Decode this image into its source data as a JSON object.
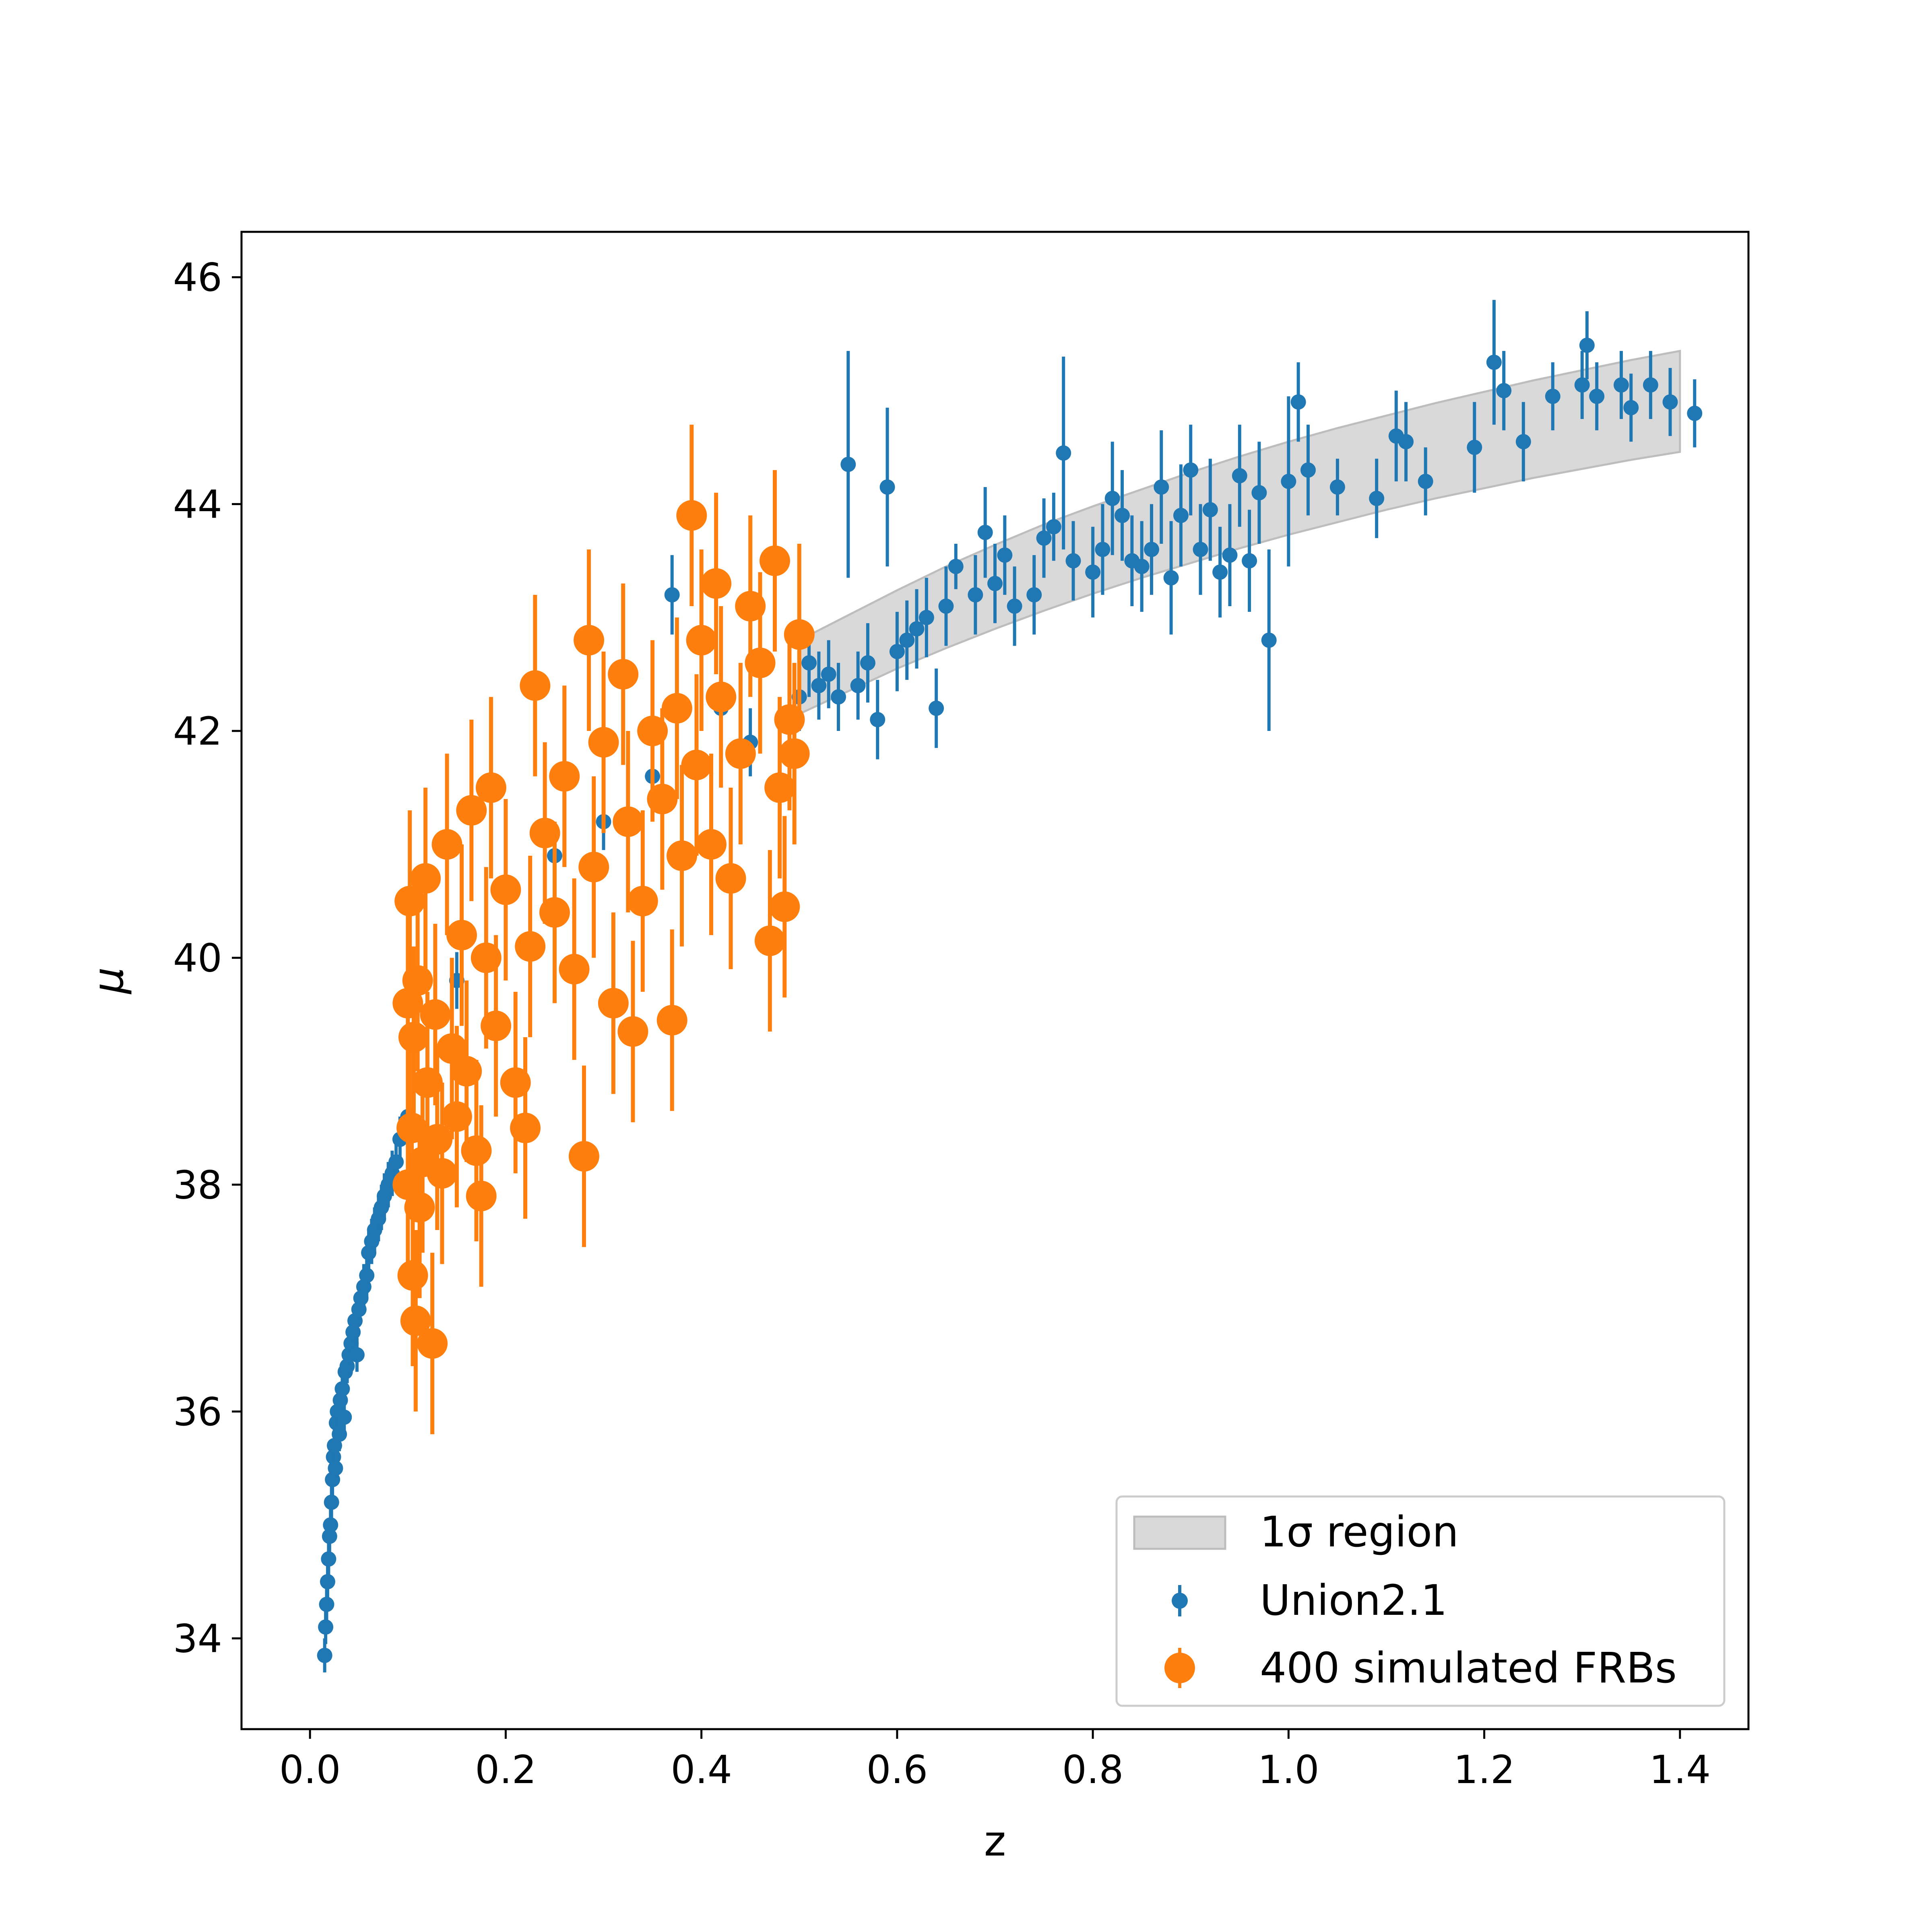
{
  "chart_data": {
    "type": "scatter",
    "title": "",
    "xlabel": "z",
    "ylabel": "μ",
    "xlim": [
      -0.07,
      1.47
    ],
    "ylim": [
      33.2,
      46.4
    ],
    "x_ticks": [
      0.0,
      0.2,
      0.4,
      0.6,
      0.8,
      1.0,
      1.2,
      1.4
    ],
    "x_tick_labels": [
      "0.0",
      "0.2",
      "0.4",
      "0.6",
      "0.8",
      "1.0",
      "1.2",
      "1.4"
    ],
    "y_ticks": [
      34,
      36,
      38,
      40,
      42,
      44,
      46
    ],
    "y_tick_labels": [
      "34",
      "36",
      "38",
      "40",
      "42",
      "44",
      "46"
    ],
    "grid": false,
    "legend_position": "lower-right",
    "colors": {
      "band": "#d9d9d9",
      "band_edge": "#bdbdbd",
      "union": "#1f77b4",
      "frb": "#ff7f0e"
    },
    "series": [
      {
        "name": "1σ region",
        "kind": "band",
        "x": [
          0.5,
          0.55,
          0.6,
          0.65,
          0.7,
          0.75,
          0.8,
          0.85,
          0.9,
          0.95,
          1.0,
          1.05,
          1.1,
          1.15,
          1.2,
          1.25,
          1.3,
          1.35,
          1.4
        ],
        "lower": [
          42.15,
          42.35,
          42.55,
          42.73,
          42.9,
          43.06,
          43.21,
          43.35,
          43.48,
          43.61,
          43.73,
          43.84,
          43.95,
          44.05,
          44.14,
          44.23,
          44.31,
          44.39,
          44.46
        ],
        "upper": [
          42.8,
          43.02,
          43.24,
          43.45,
          43.64,
          43.82,
          43.98,
          44.13,
          44.28,
          44.42,
          44.55,
          44.67,
          44.78,
          44.89,
          44.99,
          45.09,
          45.18,
          45.27,
          45.35
        ]
      },
      {
        "name": "Union2.1",
        "kind": "errorbar",
        "x": [
          0.015,
          0.016,
          0.017,
          0.018,
          0.019,
          0.02,
          0.021,
          0.022,
          0.023,
          0.024,
          0.025,
          0.026,
          0.027,
          0.028,
          0.03,
          0.031,
          0.033,
          0.035,
          0.036,
          0.038,
          0.04,
          0.042,
          0.044,
          0.046,
          0.048,
          0.05,
          0.052,
          0.055,
          0.058,
          0.06,
          0.063,
          0.066,
          0.07,
          0.073,
          0.076,
          0.08,
          0.084,
          0.088,
          0.092,
          0.1,
          0.15,
          0.2,
          0.25,
          0.3,
          0.35,
          0.37,
          0.42,
          0.45,
          0.5,
          0.51,
          0.52,
          0.53,
          0.54,
          0.55,
          0.56,
          0.57,
          0.58,
          0.59,
          0.6,
          0.61,
          0.62,
          0.63,
          0.64,
          0.65,
          0.66,
          0.68,
          0.69,
          0.7,
          0.71,
          0.72,
          0.74,
          0.75,
          0.76,
          0.77,
          0.78,
          0.8,
          0.81,
          0.82,
          0.83,
          0.84,
          0.85,
          0.86,
          0.87,
          0.88,
          0.89,
          0.9,
          0.91,
          0.92,
          0.93,
          0.94,
          0.95,
          0.96,
          0.97,
          0.98,
          1.0,
          1.01,
          1.02,
          1.05,
          1.09,
          1.11,
          1.12,
          1.14,
          1.19,
          1.21,
          1.22,
          1.24,
          1.27,
          1.3,
          1.305,
          1.315,
          1.34,
          1.35,
          1.37,
          1.39,
          1.415
        ],
        "y": [
          33.85,
          34.1,
          34.3,
          34.5,
          34.7,
          34.9,
          35.0,
          35.2,
          35.4,
          35.6,
          35.7,
          35.5,
          35.9,
          36.0,
          35.8,
          36.1,
          36.2,
          35.95,
          36.35,
          36.4,
          36.5,
          36.6,
          36.7,
          36.8,
          36.5,
          36.9,
          37.0,
          37.1,
          37.2,
          37.4,
          37.5,
          37.6,
          37.7,
          37.8,
          37.9,
          38.0,
          38.1,
          38.2,
          38.4,
          38.6,
          39.8,
          40.6,
          40.9,
          41.2,
          41.6,
          43.2,
          42.2,
          41.9,
          42.3,
          42.6,
          42.4,
          42.5,
          42.3,
          44.35,
          42.4,
          42.6,
          42.1,
          44.15,
          42.7,
          42.8,
          42.9,
          43.0,
          42.2,
          43.1,
          43.45,
          43.2,
          43.75,
          43.3,
          43.55,
          43.1,
          43.2,
          43.7,
          43.8,
          44.45,
          43.5,
          43.4,
          43.6,
          44.05,
          43.9,
          43.5,
          43.45,
          43.6,
          44.15,
          43.35,
          43.9,
          44.3,
          43.6,
          43.95,
          43.4,
          43.55,
          44.25,
          43.5,
          44.1,
          42.8,
          44.2,
          44.9,
          44.3,
          44.15,
          44.05,
          44.6,
          44.55,
          44.2,
          44.5,
          45.25,
          45.0,
          44.55,
          44.95,
          45.05,
          45.4,
          44.95,
          45.05,
          44.85,
          45.05,
          44.9,
          44.8
        ],
        "err": [
          0.15,
          0.15,
          0.15,
          0.15,
          0.15,
          0.15,
          0.15,
          0.15,
          0.15,
          0.15,
          0.15,
          0.15,
          0.15,
          0.15,
          0.15,
          0.15,
          0.15,
          0.15,
          0.15,
          0.15,
          0.15,
          0.15,
          0.15,
          0.15,
          0.15,
          0.15,
          0.15,
          0.2,
          0.2,
          0.2,
          0.2,
          0.2,
          0.2,
          0.2,
          0.2,
          0.2,
          0.2,
          0.2,
          0.2,
          0.25,
          0.25,
          0.25,
          0.25,
          0.25,
          0.25,
          0.35,
          0.3,
          0.3,
          0.3,
          0.3,
          0.3,
          0.3,
          0.3,
          1.0,
          0.3,
          0.35,
          0.35,
          0.7,
          0.35,
          0.35,
          0.35,
          0.35,
          0.35,
          0.35,
          0.2,
          0.35,
          0.4,
          0.35,
          0.35,
          0.35,
          0.35,
          0.35,
          0.3,
          0.85,
          0.35,
          0.4,
          0.4,
          0.5,
          0.4,
          0.4,
          0.4,
          0.4,
          0.5,
          0.5,
          0.45,
          0.4,
          0.4,
          0.45,
          0.4,
          0.45,
          0.45,
          0.45,
          0.45,
          0.8,
          0.75,
          0.35,
          0.4,
          0.25,
          0.35,
          0.4,
          0.35,
          0.3,
          0.4,
          0.55,
          0.35,
          0.35,
          0.3,
          0.3,
          0.3,
          0.3,
          0.3,
          0.3,
          0.3,
          0.3,
          0.3
        ]
      },
      {
        "name": "400 simulated FRBs",
        "kind": "errorbar",
        "x": [
          0.1,
          0.1,
          0.102,
          0.104,
          0.105,
          0.106,
          0.108,
          0.11,
          0.112,
          0.115,
          0.118,
          0.12,
          0.125,
          0.128,
          0.13,
          0.135,
          0.14,
          0.145,
          0.15,
          0.155,
          0.16,
          0.165,
          0.17,
          0.175,
          0.18,
          0.185,
          0.19,
          0.2,
          0.21,
          0.22,
          0.225,
          0.23,
          0.24,
          0.25,
          0.26,
          0.27,
          0.28,
          0.285,
          0.29,
          0.3,
          0.31,
          0.32,
          0.325,
          0.33,
          0.34,
          0.35,
          0.36,
          0.37,
          0.375,
          0.38,
          0.39,
          0.395,
          0.4,
          0.41,
          0.415,
          0.42,
          0.43,
          0.44,
          0.45,
          0.46,
          0.47,
          0.475,
          0.48,
          0.485,
          0.49,
          0.495,
          0.5
        ],
        "y": [
          39.6,
          38.0,
          40.5,
          38.5,
          37.2,
          39.3,
          36.8,
          39.8,
          37.8,
          38.2,
          40.7,
          38.9,
          36.6,
          39.5,
          38.4,
          38.1,
          41.0,
          39.2,
          38.6,
          40.2,
          39.0,
          41.3,
          38.3,
          37.9,
          40.0,
          41.5,
          39.4,
          40.6,
          38.9,
          38.5,
          40.1,
          42.4,
          41.1,
          40.4,
          41.6,
          39.9,
          38.25,
          42.8,
          40.8,
          41.9,
          39.6,
          42.5,
          41.2,
          39.35,
          40.5,
          42.0,
          41.4,
          39.45,
          42.2,
          40.9,
          43.9,
          41.7,
          42.8,
          41.0,
          43.3,
          42.3,
          40.7,
          41.8,
          43.1,
          42.6,
          40.15,
          43.5,
          41.5,
          40.45,
          42.1,
          41.8,
          42.85
        ],
        "err": [
          0.8,
          0.8,
          0.8,
          0.8,
          0.8,
          0.8,
          0.8,
          0.8,
          0.8,
          0.8,
          0.8,
          0.8,
          0.8,
          0.8,
          0.8,
          0.8,
          0.8,
          0.8,
          0.8,
          0.8,
          0.8,
          0.8,
          0.8,
          0.8,
          0.8,
          0.8,
          0.8,
          0.8,
          0.8,
          0.8,
          0.8,
          0.8,
          0.8,
          0.8,
          0.8,
          0.8,
          0.8,
          0.8,
          0.8,
          0.8,
          0.8,
          0.8,
          0.8,
          0.8,
          0.8,
          0.8,
          0.8,
          0.8,
          0.8,
          0.8,
          0.8,
          0.8,
          0.8,
          0.8,
          0.8,
          0.8,
          0.8,
          0.8,
          0.8,
          0.8,
          0.8,
          0.8,
          0.8,
          0.8,
          0.8,
          0.8,
          0.8
        ]
      }
    ]
  }
}
